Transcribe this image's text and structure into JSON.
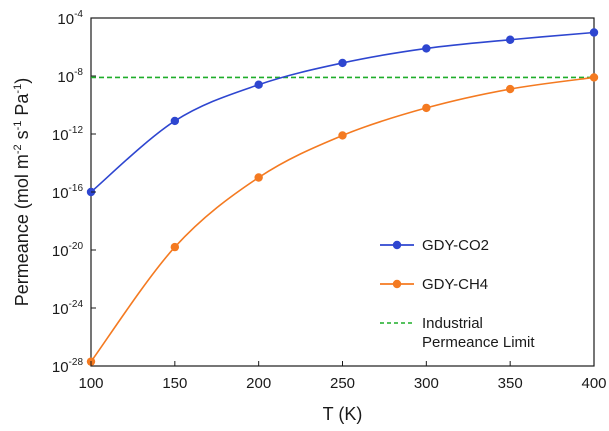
{
  "chart_data": {
    "type": "line",
    "xlabel": "T (K)",
    "ylabel": {
      "prefix": "Permeance (mol m",
      "sup1": "-2",
      "mid1": " s",
      "sup2": "-1",
      "mid2": " Pa",
      "sup3": "-1",
      "suffix": ")"
    },
    "y_scale": "log10",
    "xlim": [
      100,
      400
    ],
    "ylim_exponent": [
      -28,
      -4
    ],
    "x_ticks": [
      "100",
      "150",
      "200",
      "250",
      "300",
      "350",
      "400"
    ],
    "y_ticks": [
      {
        "base": "10",
        "exp": "-4",
        "value": -4
      },
      {
        "base": "10",
        "exp": "-8",
        "value": -8
      },
      {
        "base": "10",
        "exp": "-12",
        "value": -12
      },
      {
        "base": "10",
        "exp": "-16",
        "value": -16
      },
      {
        "base": "10",
        "exp": "-20",
        "value": -20
      },
      {
        "base": "10",
        "exp": "-24",
        "value": -24
      },
      {
        "base": "10",
        "exp": "-28",
        "value": -28
      }
    ],
    "grid": false,
    "legend_position": "bottom-right",
    "series": [
      {
        "name": "GDY-CO2",
        "color": "#2e46d0",
        "marker": "circle",
        "x": [
          100,
          150,
          200,
          250,
          300,
          350,
          400
        ],
        "log10_y": [
          -16.0,
          -11.1,
          -8.6,
          -7.1,
          -6.1,
          -5.5,
          -5.0
        ]
      },
      {
        "name": "GDY-CH4",
        "color": "#f47a21",
        "marker": "circle",
        "x": [
          100,
          150,
          200,
          250,
          300,
          350,
          400
        ],
        "log10_y": [
          -27.7,
          -19.8,
          -15.0,
          -12.1,
          -10.2,
          -8.9,
          -8.1
        ]
      }
    ],
    "reference_lines": [
      {
        "name_line1": "Industrial",
        "name_line2": "Permeance Limit",
        "color": "#1fad2a",
        "style": "dashed",
        "log10_y": -8.1
      }
    ]
  }
}
